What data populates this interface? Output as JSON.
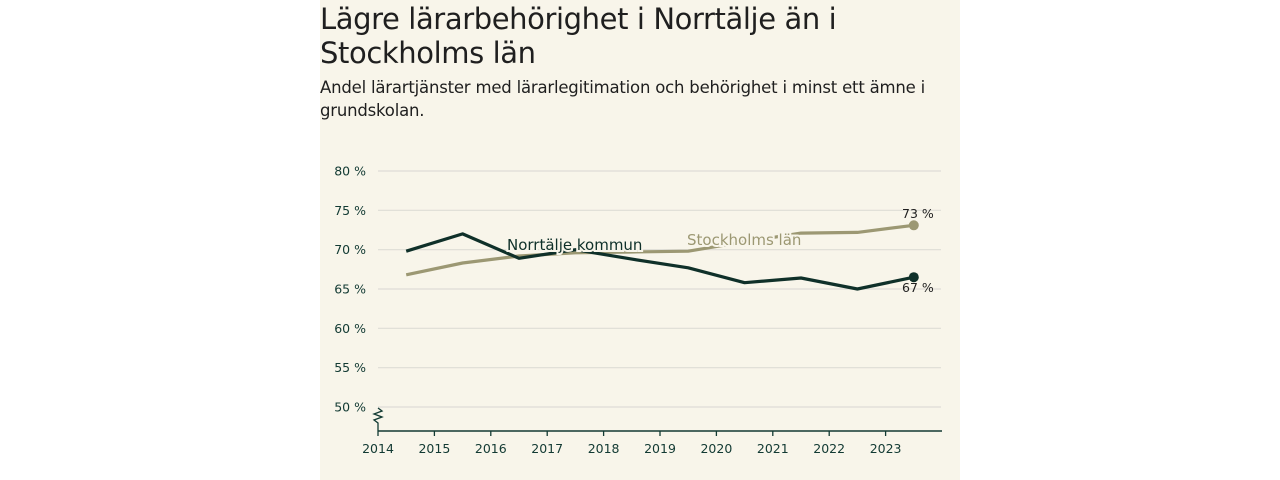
{
  "chart_data": {
    "type": "line",
    "title": "Lägre lärarbehörighet i Norrtälje än i Stockholms län",
    "subtitle": "Andel lärartjänster med lärarlegitimation och behörighet i minst ett ämne i grundskolan.",
    "xlabel": "",
    "ylabel": "",
    "x_ticks": [
      "2014",
      "2015",
      "2016",
      "2017",
      "2018",
      "2019",
      "2020",
      "2021",
      "2022",
      "2023"
    ],
    "y_ticks": [
      "50 %",
      "55 %",
      "60 %",
      "65 %",
      "70 %",
      "75 %",
      "80 %"
    ],
    "ylim": [
      47,
      80
    ],
    "xlim": [
      2014,
      2024
    ],
    "grid": true,
    "axis_break": true,
    "x": [
      2014.5,
      2015.5,
      2016.5,
      2017.5,
      2018.5,
      2019.5,
      2020.5,
      2021.5,
      2022.5,
      2023.5
    ],
    "series": [
      {
        "name": "Norrtälje kommun",
        "color": "#0f3029",
        "values": [
          69.8,
          72.0,
          68.9,
          70.0,
          68.8,
          67.7,
          65.8,
          66.4,
          65.0,
          66.5
        ],
        "end_label": "67 %"
      },
      {
        "name": "Stockholms län",
        "color": "#9c9873",
        "values": [
          66.8,
          68.3,
          69.2,
          69.6,
          69.7,
          69.8,
          71.0,
          72.1,
          72.2,
          73.1
        ],
        "end_label": "73 %"
      }
    ]
  }
}
